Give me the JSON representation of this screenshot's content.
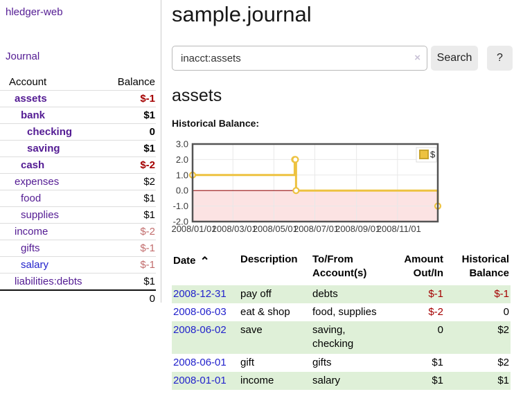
{
  "app": {
    "brand": "hledger-web"
  },
  "sidebar": {
    "journal_link": "Journal",
    "accounts": {
      "header_account": "Account",
      "header_balance": "Balance",
      "rows": [
        {
          "name": "assets",
          "level": 1,
          "bold": true,
          "balance": "$-1"
        },
        {
          "name": "bank",
          "level": 2,
          "bold": true,
          "balance": "$1"
        },
        {
          "name": "checking",
          "level": 3,
          "bold": true,
          "balance": "0"
        },
        {
          "name": "saving",
          "level": 3,
          "bold": true,
          "balance": "$1"
        },
        {
          "name": "cash",
          "level": 2,
          "bold": true,
          "balance": "$-2"
        },
        {
          "name": "expenses",
          "level": 1,
          "bold": false,
          "balance": "$2"
        },
        {
          "name": "food",
          "level": 2,
          "bold": false,
          "balance": "$1"
        },
        {
          "name": "supplies",
          "level": 2,
          "bold": false,
          "balance": "$1"
        },
        {
          "name": "income",
          "level": 1,
          "bold": false,
          "balance": "$-2"
        },
        {
          "name": "gifts",
          "level": 2,
          "bold": false,
          "balance": "$-1"
        },
        {
          "name": "salary",
          "level": 2,
          "bold": false,
          "balance": "$-1",
          "blue": true
        },
        {
          "name": "liabilities:debts",
          "level": 1,
          "bold": false,
          "balance": "$1"
        }
      ],
      "total": "0"
    }
  },
  "main": {
    "title": "sample.journal",
    "search": {
      "value": "inacct:assets",
      "clear_icon": "×",
      "search_button": "Search",
      "help_button": "?"
    },
    "account_heading": "assets",
    "chart_title": "Historical Balance:"
  },
  "chart_data": {
    "type": "line",
    "step": true,
    "title": "Historical Balance",
    "series": [
      {
        "name": "$",
        "color": "#edc240",
        "x": [
          "2008-01-01",
          "2008-06-01",
          "2008-06-02",
          "2008-06-03",
          "2008-12-31"
        ],
        "y": [
          1,
          2,
          2,
          0,
          -1
        ]
      }
    ],
    "xrange": [
      "2008-01-01",
      "2008-12-31"
    ],
    "ylim": [
      -2,
      3
    ],
    "yticks": [
      {
        "v": 3,
        "label": "3.0"
      },
      {
        "v": 2,
        "label": "2.0"
      },
      {
        "v": 1,
        "label": "1.0"
      },
      {
        "v": 0,
        "label": "0.0"
      },
      {
        "v": -1,
        "label": "-1.0"
      },
      {
        "v": -2,
        "label": "-2.0"
      }
    ],
    "xticks": [
      {
        "pos": "2008-01-01",
        "label": "2008/01/01"
      },
      {
        "pos": "2008-03-01",
        "label": "2008/03/01"
      },
      {
        "pos": "2008-05-01",
        "label": "2008/05/01"
      },
      {
        "pos": "2008-07-01",
        "label": "2008/07/01"
      },
      {
        "pos": "2008-09-01",
        "label": "2008/09/01"
      },
      {
        "pos": "2008-11-01",
        "label": "2008/11/01"
      }
    ],
    "legend": {
      "label": "$",
      "swatch_color": "#edc240",
      "swatch_border": "#c9a42b",
      "position": "top-right"
    },
    "colors": {
      "negative_fill": "#fce3e3",
      "zero_line": "#991111",
      "grid": "#e8e8e8",
      "border": "#545454",
      "tick_text": "#3a3a3a"
    }
  },
  "transactions": {
    "headers": [
      {
        "lines": [
          "Date"
        ],
        "align": "left",
        "sort_icon": "⌃"
      },
      {
        "lines": [
          "Description"
        ],
        "align": "left"
      },
      {
        "lines": [
          "To/From",
          "Account(s)"
        ],
        "align": "left"
      },
      {
        "lines": [
          "Amount",
          "Out/In"
        ],
        "align": "right"
      },
      {
        "lines": [
          "Historical",
          "Balance"
        ],
        "align": "right"
      }
    ],
    "rows": [
      {
        "date": "2008-12-31",
        "description": "pay off",
        "accounts": "debts",
        "amount": "$-1",
        "balance": "$-1",
        "shaded": true
      },
      {
        "date": "2008-06-03",
        "description": "eat & shop",
        "accounts": "food, supplies",
        "amount": "$-2",
        "balance": "0",
        "shaded": false
      },
      {
        "date": "2008-06-02",
        "description": "save",
        "accounts": "saving, checking",
        "amount": "0",
        "balance": "$2",
        "shaded": true
      },
      {
        "date": "2008-06-01",
        "description": "gift",
        "accounts": "gifts",
        "amount": "$1",
        "balance": "$2",
        "shaded": false
      },
      {
        "date": "2008-01-01",
        "description": "income",
        "accounts": "salary",
        "amount": "$1",
        "balance": "$1",
        "shaded": true
      }
    ]
  }
}
